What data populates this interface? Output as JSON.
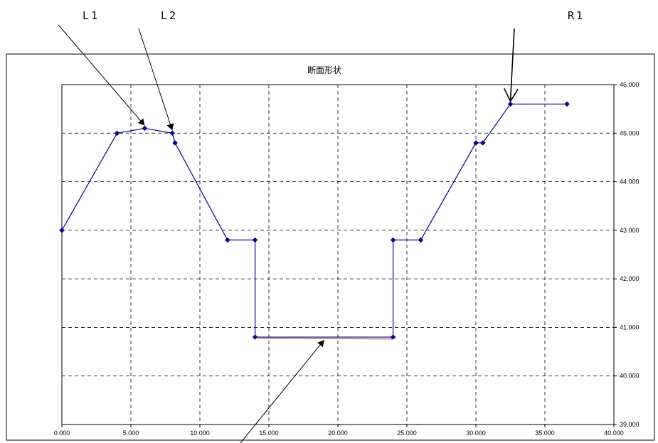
{
  "chart_data": {
    "type": "line",
    "title": "断面形状",
    "xlim": [
      0,
      40
    ],
    "ylim": [
      39,
      46
    ],
    "x_ticks": [
      "0.000",
      "5.000",
      "10.000",
      "15.000",
      "20.000",
      "25.000",
      "30.000",
      "35.000",
      "40.000"
    ],
    "y_ticks": [
      "39.000",
      "40.000",
      "41.000",
      "42.000",
      "43.000",
      "44.000",
      "45.000",
      "46.000"
    ],
    "y_axis_side": "right",
    "grid": true,
    "series": [
      {
        "color": "#000080",
        "marker": "diamond",
        "points": [
          [
            0,
            43
          ],
          [
            4,
            45
          ],
          [
            6,
            45.1
          ],
          [
            8,
            45
          ],
          [
            8.2,
            44.8
          ],
          [
            12,
            42.8
          ],
          [
            14,
            42.8
          ],
          [
            14,
            40.8
          ],
          [
            24,
            40.8
          ],
          [
            24,
            42.8
          ],
          [
            26,
            42.8
          ],
          [
            30,
            44.8
          ],
          [
            30.5,
            44.8
          ],
          [
            32.5,
            45.6
          ],
          [
            36.6,
            45.6
          ]
        ]
      },
      {
        "color": "#c0504d",
        "marker": "none",
        "points": [
          [
            14,
            40.78
          ],
          [
            24,
            40.76
          ]
        ]
      }
    ],
    "annotations": [
      {
        "label": "L1",
        "target": [
          6,
          45.1
        ]
      },
      {
        "label": "L2",
        "target": [
          8,
          45
        ]
      },
      {
        "label": "R1",
        "target": [
          32.5,
          45.6
        ]
      },
      {
        "label": "",
        "target": [
          19,
          40.77
        ]
      }
    ]
  }
}
